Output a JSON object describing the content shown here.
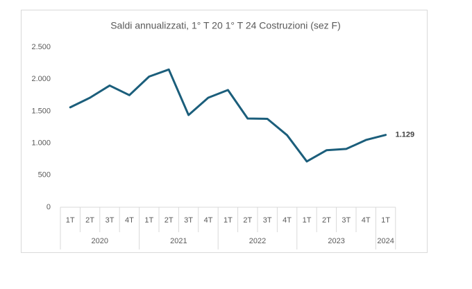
{
  "chart_data": {
    "type": "line",
    "title": "Saldi annualizzati, 1° T 20 1° T 24  Costruzioni (sez F)",
    "groups": [
      {
        "name": "2020",
        "categories": [
          "1T",
          "2T",
          "3T",
          "4T"
        ]
      },
      {
        "name": "2021",
        "categories": [
          "1T",
          "2T",
          "3T",
          "4T"
        ]
      },
      {
        "name": "2022",
        "categories": [
          "1T",
          "2T",
          "3T",
          "4T"
        ]
      },
      {
        "name": "2023",
        "categories": [
          "1T",
          "2T",
          "3T",
          "4T"
        ]
      },
      {
        "name": "2024",
        "categories": [
          "1T"
        ]
      }
    ],
    "values": [
      1560,
      1710,
      1900,
      1750,
      2040,
      2150,
      1440,
      1710,
      1830,
      1385,
      1380,
      1125,
      715,
      890,
      910,
      1050,
      1129
    ],
    "value_labels": [
      null,
      null,
      null,
      null,
      null,
      null,
      null,
      null,
      null,
      null,
      null,
      null,
      null,
      null,
      null,
      null,
      "1.129"
    ],
    "color": "#1b5e7b",
    "ylim": [
      0,
      2500
    ],
    "yticks": [
      0,
      500,
      {
        "value": 1000,
        "label": "1.000"
      },
      {
        "value": 1500,
        "label": "1.500"
      },
      {
        "value": 2000,
        "label": "2.000"
      },
      {
        "value": 2500,
        "label": "2.500"
      }
    ],
    "grid": false
  }
}
